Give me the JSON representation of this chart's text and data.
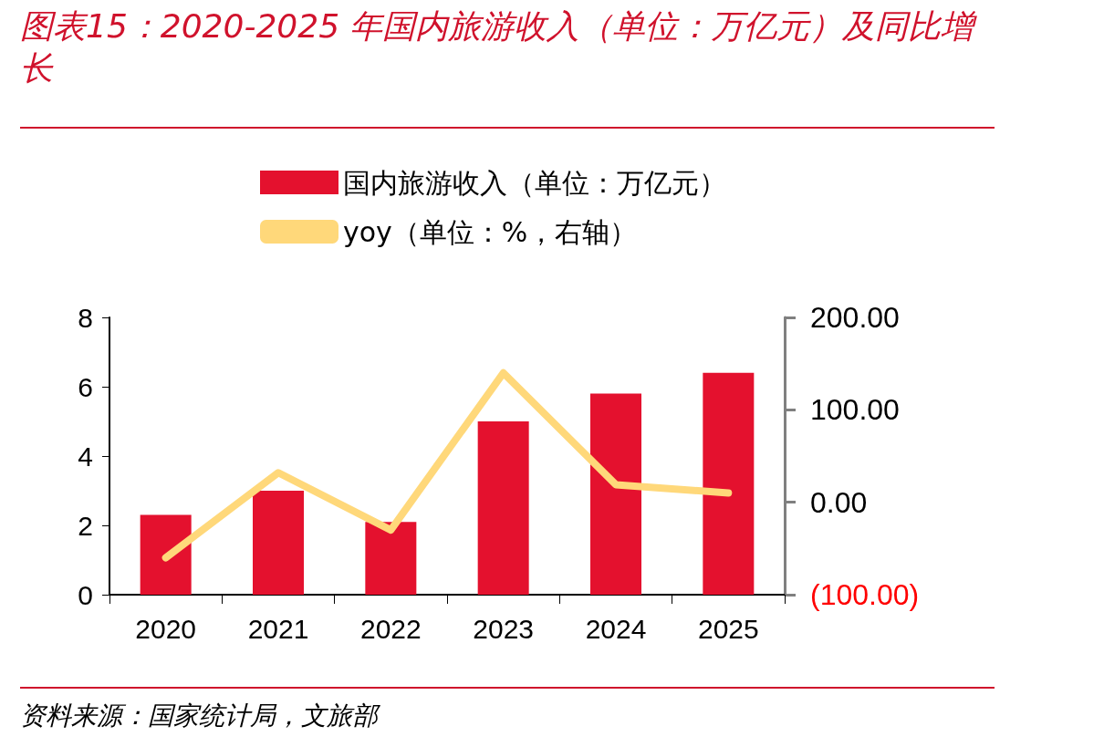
{
  "chart_data": {
    "type": "bar",
    "title": "图表15：2020-2025 年国内旅游收入（单位：万亿元）及同比增长",
    "categories": [
      "2020",
      "2021",
      "2022",
      "2023",
      "2024",
      "2025"
    ],
    "series": [
      {
        "name": "国内旅游收入（单位：万亿元）",
        "color": "#e4112e",
        "values": [
          2.3,
          3.0,
          2.1,
          5.0,
          5.8,
          6.4
        ]
      },
      {
        "name": "yoy（单位：%，右轴）",
        "type": "line",
        "axis": "y2",
        "color": "#ffd87a",
        "values": [
          -60,
          32,
          -30,
          140,
          19,
          10
        ]
      }
    ],
    "ylim": [
      0,
      8
    ],
    "yticks": [
      0,
      2,
      4,
      6,
      8
    ],
    "y2lim": [
      -100,
      200
    ],
    "y2ticks": [
      {
        "value": -100,
        "label": "(100.00)"
      },
      {
        "value": 0,
        "label": "0.00"
      },
      {
        "value": 100,
        "label": "100.00"
      },
      {
        "value": 200,
        "label": "200.00"
      }
    ],
    "legend": "top",
    "grid": false,
    "marker": "none",
    "line_style": "solid",
    "annotations": [
      "资料来源：国家统计局，文旅部"
    ]
  }
}
